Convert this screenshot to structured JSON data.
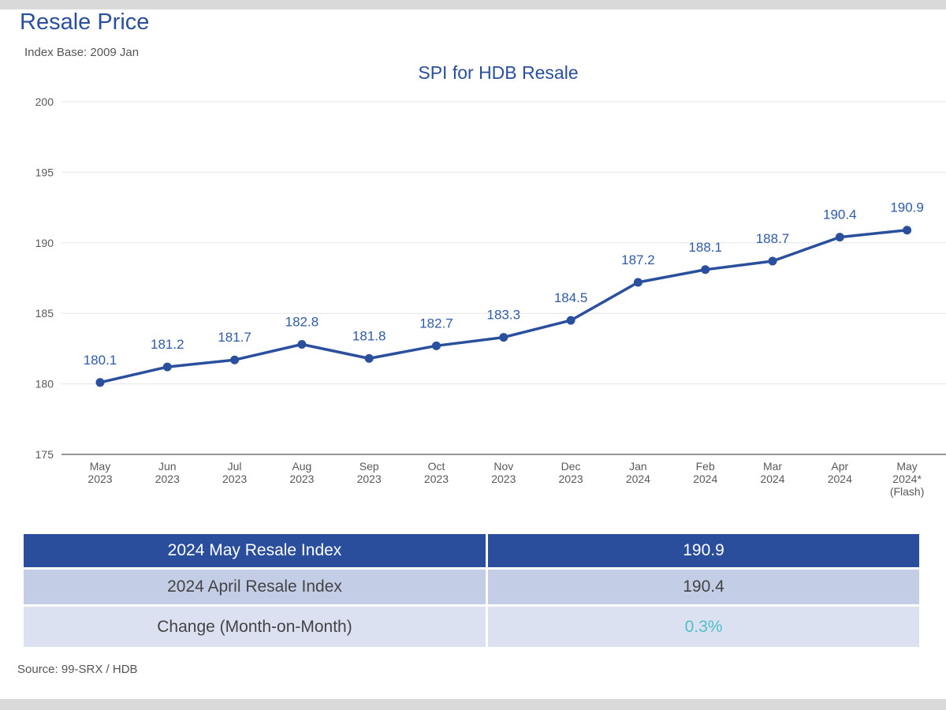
{
  "header": {
    "title": "Resale Price",
    "subtitle": "Index Base: 2009 Jan"
  },
  "chart_data": {
    "type": "line",
    "title": "SPI for HDB Resale",
    "xlabel": "",
    "ylabel": "",
    "ylim": [
      175,
      200
    ],
    "yticks": [
      175,
      180,
      185,
      190,
      195,
      200
    ],
    "grid": true,
    "categories": [
      [
        "May",
        "2023"
      ],
      [
        "Jun",
        "2023"
      ],
      [
        "Jul",
        "2023"
      ],
      [
        "Aug",
        "2023"
      ],
      [
        "Sep",
        "2023"
      ],
      [
        "Oct",
        "2023"
      ],
      [
        "Nov",
        "2023"
      ],
      [
        "Dec",
        "2023"
      ],
      [
        "Jan",
        "2024"
      ],
      [
        "Feb",
        "2024"
      ],
      [
        "Mar",
        "2024"
      ],
      [
        "Apr",
        "2024"
      ],
      [
        "May",
        "2024*",
        "(Flash)"
      ]
    ],
    "series": [
      {
        "name": "SPI for HDB Resale",
        "values": [
          180.1,
          181.2,
          181.7,
          182.8,
          181.8,
          182.7,
          183.3,
          184.5,
          187.2,
          188.1,
          188.7,
          190.4,
          190.9
        ],
        "color": "#2a4f9c"
      }
    ],
    "colors": {
      "line": "#2a4f9c",
      "label": "#2f5aa8",
      "title": "#2a4f9c",
      "grid": "#e6e6e6",
      "axis": "#595959",
      "tick": "#595959"
    }
  },
  "summary_table": {
    "rows": [
      {
        "label": "2024 May Resale Index",
        "value": "190.9"
      },
      {
        "label": "2024 April Resale Index",
        "value": "190.4"
      },
      {
        "label": "Change (Month-on-Month)",
        "value": "0.3%"
      }
    ],
    "change_color": "#4fc0c8"
  },
  "footer": {
    "source": "Source: 99-SRX / HDB"
  }
}
